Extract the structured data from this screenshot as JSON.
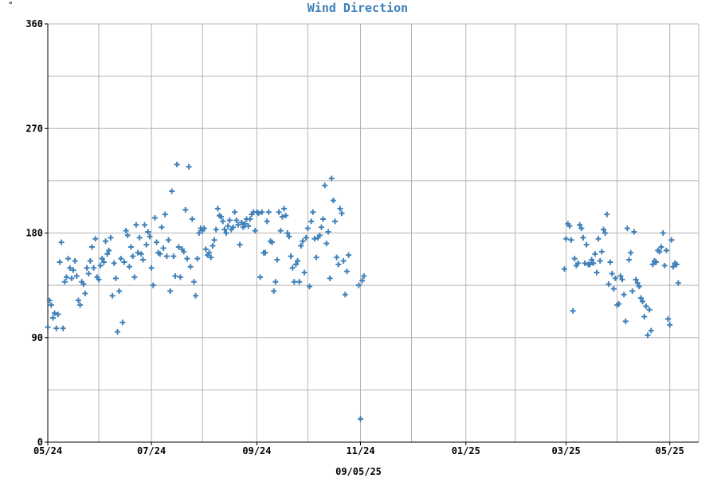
{
  "corner_mark": "°",
  "chart_data": {
    "type": "scatter",
    "title": "Wind Direction",
    "xlabel": "09/05/25",
    "ylabel": "",
    "ylim": [
      0,
      360
    ],
    "xlim": [
      "2024-05-24",
      "2025-06-11"
    ],
    "grid": true,
    "marker": "+",
    "colors": {
      "marker": "#3f80b9",
      "title": "#3f80b9",
      "grid": "#b4b4b4",
      "axis": "#000000"
    },
    "y_ticks": [
      0,
      90,
      180,
      270,
      360
    ],
    "y_tick_labels": [
      "0",
      "90",
      "180",
      "270",
      "360"
    ],
    "y_minor_ticks": [
      45,
      135,
      225,
      315
    ],
    "x_ticks": [
      "2024-05-24",
      "2024-07-24",
      "2024-09-24",
      "2024-11-24",
      "2025-01-25",
      "2025-03-25",
      "2025-05-25"
    ],
    "x_tick_labels": [
      "05/24",
      "07/24",
      "09/24",
      "11/24",
      "01/25",
      "03/25",
      "05/25"
    ],
    "x_minor_ticks": [
      "2024-06-23",
      "2024-08-23",
      "2024-10-24",
      "2024-12-24",
      "2025-02-23",
      "2025-04-24"
    ],
    "points": [
      [
        "2024-05-24",
        99
      ],
      [
        "2024-05-25",
        122
      ],
      [
        "2024-05-26",
        118
      ],
      [
        "2024-05-27",
        107
      ],
      [
        "2024-05-28",
        111
      ],
      [
        "2024-05-29",
        98
      ],
      [
        "2024-05-30",
        110
      ],
      [
        "2024-05-31",
        155
      ],
      [
        "2024-06-01",
        172
      ],
      [
        "2024-06-02",
        98
      ],
      [
        "2024-06-03",
        138
      ],
      [
        "2024-06-04",
        142
      ],
      [
        "2024-06-05",
        158
      ],
      [
        "2024-06-06",
        150
      ],
      [
        "2024-06-07",
        141
      ],
      [
        "2024-06-08",
        148
      ],
      [
        "2024-06-09",
        156
      ],
      [
        "2024-06-10",
        143
      ],
      [
        "2024-06-11",
        122
      ],
      [
        "2024-06-12",
        118
      ],
      [
        "2024-06-13",
        138
      ],
      [
        "2024-06-14",
        136
      ],
      [
        "2024-06-15",
        128
      ],
      [
        "2024-06-16",
        150
      ],
      [
        "2024-06-17",
        145
      ],
      [
        "2024-06-18",
        156
      ],
      [
        "2024-06-19",
        168
      ],
      [
        "2024-06-20",
        150
      ],
      [
        "2024-06-21",
        175
      ],
      [
        "2024-06-22",
        142
      ],
      [
        "2024-06-23",
        140
      ],
      [
        "2024-06-24",
        152
      ],
      [
        "2024-06-25",
        158
      ],
      [
        "2024-06-26",
        155
      ],
      [
        "2024-06-27",
        173
      ],
      [
        "2024-06-28",
        162
      ],
      [
        "2024-06-29",
        165
      ],
      [
        "2024-06-30",
        176
      ],
      [
        "2024-07-01",
        126
      ],
      [
        "2024-07-02",
        154
      ],
      [
        "2024-07-03",
        141
      ],
      [
        "2024-07-04",
        95
      ],
      [
        "2024-07-05",
        130
      ],
      [
        "2024-07-06",
        158
      ],
      [
        "2024-07-07",
        103
      ],
      [
        "2024-07-08",
        155
      ],
      [
        "2024-07-09",
        182
      ],
      [
        "2024-07-10",
        178
      ],
      [
        "2024-07-11",
        151
      ],
      [
        "2024-07-12",
        168
      ],
      [
        "2024-07-13",
        160
      ],
      [
        "2024-07-14",
        142
      ],
      [
        "2024-07-15",
        187
      ],
      [
        "2024-07-16",
        163
      ],
      [
        "2024-07-17",
        176
      ],
      [
        "2024-07-18",
        162
      ],
      [
        "2024-07-19",
        157
      ],
      [
        "2024-07-20",
        187
      ],
      [
        "2024-07-21",
        170
      ],
      [
        "2024-07-22",
        181
      ],
      [
        "2024-07-23",
        177
      ],
      [
        "2024-07-24",
        150
      ],
      [
        "2024-07-25",
        135
      ],
      [
        "2024-07-26",
        193
      ],
      [
        "2024-07-27",
        172
      ],
      [
        "2024-07-28",
        163
      ],
      [
        "2024-07-29",
        162
      ],
      [
        "2024-07-30",
        185
      ],
      [
        "2024-07-31",
        167
      ],
      [
        "2024-08-01",
        196
      ],
      [
        "2024-08-02",
        160
      ],
      [
        "2024-08-03",
        174
      ],
      [
        "2024-08-04",
        130
      ],
      [
        "2024-08-05",
        216
      ],
      [
        "2024-08-06",
        160
      ],
      [
        "2024-08-07",
        143
      ],
      [
        "2024-08-08",
        239
      ],
      [
        "2024-08-09",
        168
      ],
      [
        "2024-08-10",
        142
      ],
      [
        "2024-08-11",
        166
      ],
      [
        "2024-08-12",
        164
      ],
      [
        "2024-08-13",
        200
      ],
      [
        "2024-08-14",
        158
      ],
      [
        "2024-08-15",
        237
      ],
      [
        "2024-08-16",
        151
      ],
      [
        "2024-08-17",
        192
      ],
      [
        "2024-08-18",
        138
      ],
      [
        "2024-08-19",
        126
      ],
      [
        "2024-08-20",
        158
      ],
      [
        "2024-08-21",
        180
      ],
      [
        "2024-08-22",
        184
      ],
      [
        "2024-08-23",
        182
      ],
      [
        "2024-08-24",
        184
      ],
      [
        "2024-08-25",
        166
      ],
      [
        "2024-08-26",
        161
      ],
      [
        "2024-08-27",
        163
      ],
      [
        "2024-08-28",
        159
      ],
      [
        "2024-08-29",
        169
      ],
      [
        "2024-08-30",
        174
      ],
      [
        "2024-08-31",
        183
      ],
      [
        "2024-09-01",
        201
      ],
      [
        "2024-09-02",
        195
      ],
      [
        "2024-09-03",
        194
      ],
      [
        "2024-09-04",
        190
      ],
      [
        "2024-09-05",
        183
      ],
      [
        "2024-09-06",
        180
      ],
      [
        "2024-09-07",
        186
      ],
      [
        "2024-09-08",
        191
      ],
      [
        "2024-09-09",
        183
      ],
      [
        "2024-09-10",
        185
      ],
      [
        "2024-09-11",
        198
      ],
      [
        "2024-09-12",
        191
      ],
      [
        "2024-09-13",
        187
      ],
      [
        "2024-09-14",
        170
      ],
      [
        "2024-09-15",
        189
      ],
      [
        "2024-09-16",
        185
      ],
      [
        "2024-09-17",
        188
      ],
      [
        "2024-09-18",
        192
      ],
      [
        "2024-09-19",
        186
      ],
      [
        "2024-09-20",
        192
      ],
      [
        "2024-09-21",
        196
      ],
      [
        "2024-09-22",
        198
      ],
      [
        "2024-09-23",
        182
      ],
      [
        "2024-09-24",
        198
      ],
      [
        "2024-09-25",
        197
      ],
      [
        "2024-09-26",
        142
      ],
      [
        "2024-09-27",
        198
      ],
      [
        "2024-09-28",
        163
      ],
      [
        "2024-09-29",
        163
      ],
      [
        "2024-09-30",
        190
      ],
      [
        "2024-10-01",
        198
      ],
      [
        "2024-10-02",
        173
      ],
      [
        "2024-10-03",
        172
      ],
      [
        "2024-10-04",
        130
      ],
      [
        "2024-10-05",
        138
      ],
      [
        "2024-10-06",
        157
      ],
      [
        "2024-10-07",
        198
      ],
      [
        "2024-10-08",
        182
      ],
      [
        "2024-10-09",
        194
      ],
      [
        "2024-10-10",
        201
      ],
      [
        "2024-10-11",
        195
      ],
      [
        "2024-10-12",
        180
      ],
      [
        "2024-10-13",
        177
      ],
      [
        "2024-10-14",
        160
      ],
      [
        "2024-10-15",
        150
      ],
      [
        "2024-10-16",
        138
      ],
      [
        "2024-10-17",
        153
      ],
      [
        "2024-10-18",
        156
      ],
      [
        "2024-10-19",
        138
      ],
      [
        "2024-10-20",
        169
      ],
      [
        "2024-10-21",
        173
      ],
      [
        "2024-10-22",
        146
      ],
      [
        "2024-10-23",
        176
      ],
      [
        "2024-10-24",
        184
      ],
      [
        "2024-10-25",
        134
      ],
      [
        "2024-10-26",
        190
      ],
      [
        "2024-10-27",
        198
      ],
      [
        "2024-10-28",
        175
      ],
      [
        "2024-10-29",
        159
      ],
      [
        "2024-10-30",
        176
      ],
      [
        "2024-10-31",
        178
      ],
      [
        "2024-11-01",
        185
      ],
      [
        "2024-11-02",
        192
      ],
      [
        "2024-11-03",
        221
      ],
      [
        "2024-11-04",
        171
      ],
      [
        "2024-11-05",
        181
      ],
      [
        "2024-11-06",
        141
      ],
      [
        "2024-11-07",
        227
      ],
      [
        "2024-11-08",
        208
      ],
      [
        "2024-11-09",
        190
      ],
      [
        "2024-11-10",
        159
      ],
      [
        "2024-11-11",
        153
      ],
      [
        "2024-11-12",
        201
      ],
      [
        "2024-11-13",
        197
      ],
      [
        "2024-11-14",
        156
      ],
      [
        "2024-11-15",
        127
      ],
      [
        "2024-11-16",
        147
      ],
      [
        "2024-11-17",
        161
      ],
      [
        "2024-11-23",
        135
      ],
      [
        "2024-11-24",
        20
      ],
      [
        "2024-11-25",
        139
      ],
      [
        "2024-11-26",
        143
      ],
      [
        "2025-03-24",
        149
      ],
      [
        "2025-03-25",
        175
      ],
      [
        "2025-03-26",
        188
      ],
      [
        "2025-03-27",
        186
      ],
      [
        "2025-03-28",
        174
      ],
      [
        "2025-03-29",
        113
      ],
      [
        "2025-03-30",
        158
      ],
      [
        "2025-03-31",
        152
      ],
      [
        "2025-04-01",
        154
      ],
      [
        "2025-04-02",
        187
      ],
      [
        "2025-04-03",
        184
      ],
      [
        "2025-04-04",
        176
      ],
      [
        "2025-04-05",
        154
      ],
      [
        "2025-04-06",
        170
      ],
      [
        "2025-04-07",
        153
      ],
      [
        "2025-04-08",
        153
      ],
      [
        "2025-04-09",
        157
      ],
      [
        "2025-04-10",
        154
      ],
      [
        "2025-04-11",
        162
      ],
      [
        "2025-04-12",
        146
      ],
      [
        "2025-04-13",
        175
      ],
      [
        "2025-04-14",
        156
      ],
      [
        "2025-04-15",
        164
      ],
      [
        "2025-04-16",
        183
      ],
      [
        "2025-04-17",
        180
      ],
      [
        "2025-04-18",
        196
      ],
      [
        "2025-04-19",
        136
      ],
      [
        "2025-04-20",
        155
      ],
      [
        "2025-04-21",
        145
      ],
      [
        "2025-04-22",
        132
      ],
      [
        "2025-04-23",
        141
      ],
      [
        "2025-04-24",
        118
      ],
      [
        "2025-04-25",
        119
      ],
      [
        "2025-04-26",
        143
      ],
      [
        "2025-04-27",
        140
      ],
      [
        "2025-04-28",
        127
      ],
      [
        "2025-04-29",
        104
      ],
      [
        "2025-04-30",
        184
      ],
      [
        "2025-05-01",
        157
      ],
      [
        "2025-05-02",
        163
      ],
      [
        "2025-05-03",
        130
      ],
      [
        "2025-05-04",
        181
      ],
      [
        "2025-05-05",
        140
      ],
      [
        "2025-05-06",
        137
      ],
      [
        "2025-05-07",
        134
      ],
      [
        "2025-05-08",
        124
      ],
      [
        "2025-05-09",
        121
      ],
      [
        "2025-05-10",
        108
      ],
      [
        "2025-05-11",
        117
      ],
      [
        "2025-05-12",
        92
      ],
      [
        "2025-05-13",
        114
      ],
      [
        "2025-05-14",
        96
      ],
      [
        "2025-05-15",
        153
      ],
      [
        "2025-05-16",
        156
      ],
      [
        "2025-05-17",
        155
      ],
      [
        "2025-05-18",
        165
      ],
      [
        "2025-05-19",
        164
      ],
      [
        "2025-05-20",
        168
      ],
      [
        "2025-05-21",
        180
      ],
      [
        "2025-05-22",
        152
      ],
      [
        "2025-05-23",
        165
      ],
      [
        "2025-05-24",
        106
      ],
      [
        "2025-05-25",
        101
      ],
      [
        "2025-05-26",
        174
      ],
      [
        "2025-05-27",
        151
      ],
      [
        "2025-05-28",
        154
      ],
      [
        "2025-05-29",
        153
      ],
      [
        "2025-05-30",
        137
      ]
    ]
  }
}
